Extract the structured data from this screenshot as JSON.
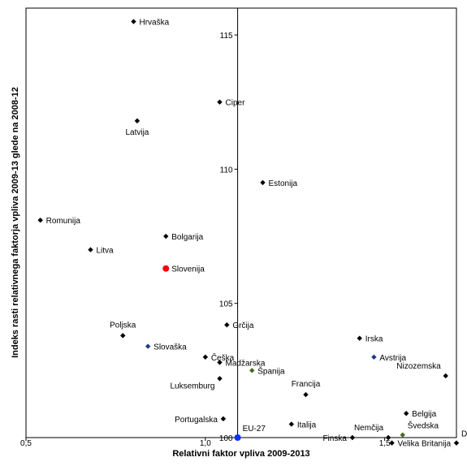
{
  "chart_data": {
    "type": "scatter",
    "xlabel": "Relativni faktor vpliva 2009-2013",
    "ylabel": "Indeks rasti relativnega faktorja vpliva 2009-13 glede na 2008-12",
    "xlim": [
      0.5,
      1.7
    ],
    "ylim": [
      100,
      116
    ],
    "grid": false,
    "x_ticks": [
      {
        "value": 0.5,
        "label": "0,5"
      },
      {
        "value": 1.0,
        "label": "1,0"
      },
      {
        "value": 1.5,
        "label": "1,5"
      }
    ],
    "y_ticks": [
      {
        "value": 100,
        "label": "100"
      },
      {
        "value": 105,
        "label": "105"
      },
      {
        "value": 110,
        "label": "110"
      },
      {
        "value": 115,
        "label": "115"
      }
    ],
    "cross_x": 1.09,
    "colors": {
      "default": "#000000",
      "highlight": "#ff0000",
      "eu": "#0033ff",
      "blue": "#1f3a8a",
      "green": "#4a6a1a"
    },
    "points": [
      {
        "name": "Hrvaška",
        "x": 0.8,
        "y": 115.5,
        "color": "default",
        "label_pos": "right"
      },
      {
        "name": "Ciper",
        "x": 1.04,
        "y": 112.5,
        "color": "default",
        "label_pos": "right"
      },
      {
        "name": "Latvija",
        "x": 0.81,
        "y": 111.8,
        "color": "default",
        "label_pos": "below"
      },
      {
        "name": "Estonija",
        "x": 1.16,
        "y": 109.5,
        "color": "default",
        "label_pos": "right"
      },
      {
        "name": "Romunija",
        "x": 0.54,
        "y": 108.1,
        "color": "default",
        "label_pos": "right"
      },
      {
        "name": "Bolgarija",
        "x": 0.89,
        "y": 107.5,
        "color": "default",
        "label_pos": "right"
      },
      {
        "name": "Litva",
        "x": 0.68,
        "y": 107.0,
        "color": "default",
        "label_pos": "right"
      },
      {
        "name": "Slovenija",
        "x": 0.89,
        "y": 106.3,
        "color": "highlight",
        "label_pos": "right"
      },
      {
        "name": "Poljska",
        "x": 0.77,
        "y": 103.8,
        "color": "default",
        "label_pos": "above"
      },
      {
        "name": "Slovaška",
        "x": 0.84,
        "y": 103.4,
        "color": "blue",
        "label_pos": "right"
      },
      {
        "name": "Grčija",
        "x": 1.06,
        "y": 104.2,
        "color": "default",
        "label_pos": "right"
      },
      {
        "name": "Irska",
        "x": 1.43,
        "y": 103.7,
        "color": "default",
        "label_pos": "right"
      },
      {
        "name": "Češka",
        "x": 1.0,
        "y": 103.0,
        "color": "default",
        "label_pos": "right"
      },
      {
        "name": "Madžarska",
        "x": 1.04,
        "y": 102.8,
        "color": "default",
        "label_pos": "right"
      },
      {
        "name": "Avstrija",
        "x": 1.47,
        "y": 103.0,
        "color": "blue",
        "label_pos": "right"
      },
      {
        "name": "Španija",
        "x": 1.13,
        "y": 102.5,
        "color": "green",
        "label_pos": "right"
      },
      {
        "name": "Luksemburg",
        "x": 1.04,
        "y": 102.2,
        "color": "default",
        "label_pos": "below-left"
      },
      {
        "name": "Nizozemska",
        "x": 1.67,
        "y": 102.3,
        "color": "default",
        "label_pos": "above-left"
      },
      {
        "name": "Francija",
        "x": 1.28,
        "y": 101.6,
        "color": "default",
        "label_pos": "above"
      },
      {
        "name": "Belgija",
        "x": 1.56,
        "y": 100.9,
        "color": "default",
        "label_pos": "right"
      },
      {
        "name": "Portugalska",
        "x": 1.05,
        "y": 100.7,
        "color": "default",
        "label_pos": "left"
      },
      {
        "name": "Italija",
        "x": 1.24,
        "y": 100.5,
        "color": "default",
        "label_pos": "right"
      },
      {
        "name": "Švedska",
        "x": 1.55,
        "y": 100.1,
        "color": "green",
        "label_pos": "above-right"
      },
      {
        "name": "Nemčija",
        "x": 1.51,
        "y": 100.0,
        "color": "default",
        "label_pos": "above-left"
      },
      {
        "name": "Finska",
        "x": 1.41,
        "y": 100.0,
        "color": "default",
        "label_pos": "left"
      },
      {
        "name": "Velika Britanija",
        "x": 1.52,
        "y": 99.8,
        "color": "default",
        "label_pos": "right"
      },
      {
        "name": "Danska",
        "x": 1.7,
        "y": 99.8,
        "color": "default",
        "label_pos": "above-right"
      },
      {
        "name": "EU-27",
        "x": 1.09,
        "y": 100.0,
        "color": "eu",
        "label_pos": "above-right"
      }
    ]
  }
}
